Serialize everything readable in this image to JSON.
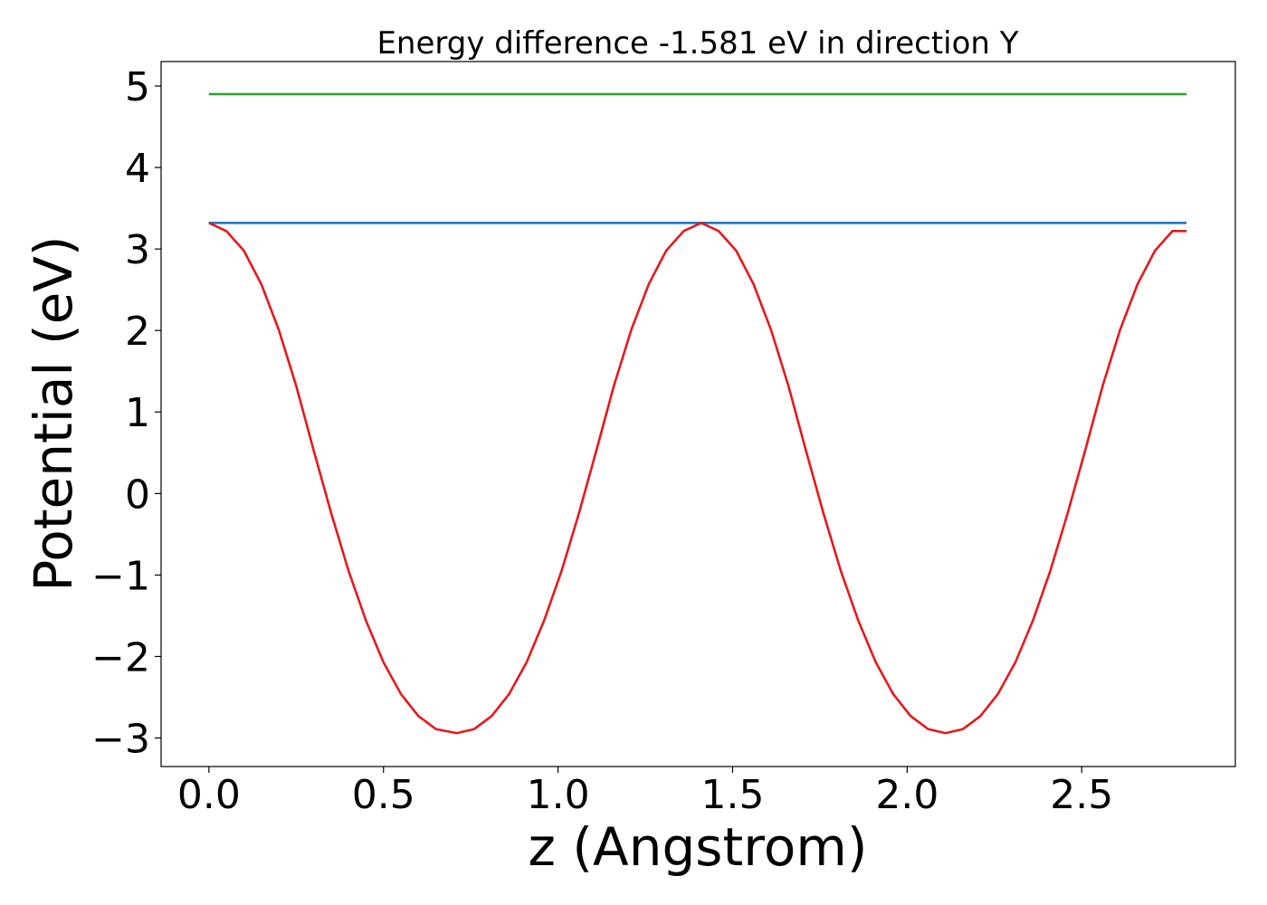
{
  "chart_data": {
    "type": "line",
    "title": "Energy difference -1.581 eV in direction Y",
    "xlabel": "z (Angstrom)",
    "ylabel": "Potential (eV)",
    "xlim": [
      -0.137,
      2.94
    ],
    "ylim": [
      -3.35,
      5.3
    ],
    "xticks": [
      0.0,
      0.5,
      1.0,
      1.5,
      2.0,
      2.5
    ],
    "xtick_labels": [
      "0.0",
      "0.5",
      "1.0",
      "1.5",
      "2.0",
      "2.5"
    ],
    "yticks": [
      -3,
      -2,
      -1,
      0,
      1,
      2,
      3,
      4,
      5
    ],
    "ytick_labels": [
      "−3",
      "−2",
      "−1",
      "0",
      "1",
      "2",
      "3",
      "4",
      "5"
    ],
    "grid": false,
    "legend": false,
    "series": [
      {
        "color": "#2ca02c",
        "x": [
          0.0,
          2.8
        ],
        "y": [
          4.9,
          4.9
        ]
      },
      {
        "color": "#1f77b4",
        "x": [
          0.0,
          2.8
        ],
        "y": [
          3.32,
          3.32
        ]
      },
      {
        "color": "#e31a1c",
        "x": [
          0.0,
          0.05,
          0.1,
          0.15,
          0.2,
          0.25,
          0.3,
          0.35,
          0.4,
          0.45,
          0.5,
          0.55,
          0.6,
          0.65,
          0.71,
          0.76,
          0.81,
          0.86,
          0.91,
          0.96,
          1.01,
          1.06,
          1.11,
          1.16,
          1.21,
          1.26,
          1.31,
          1.36,
          1.41,
          1.46,
          1.51,
          1.56,
          1.61,
          1.66,
          1.71,
          1.76,
          1.81,
          1.86,
          1.91,
          1.96,
          2.01,
          2.06,
          2.11,
          2.16,
          2.21,
          2.26,
          2.31,
          2.36,
          2.41,
          2.46,
          2.51,
          2.56,
          2.61,
          2.66,
          2.71,
          2.76,
          2.8
        ],
        "y": [
          3.32,
          3.22,
          2.98,
          2.57,
          2.01,
          1.32,
          0.53,
          -0.24,
          -0.95,
          -1.56,
          -2.07,
          -2.46,
          -2.73,
          -2.89,
          -2.94,
          -2.89,
          -2.73,
          -2.46,
          -2.07,
          -1.56,
          -0.95,
          -0.24,
          0.53,
          1.32,
          2.01,
          2.57,
          2.98,
          3.22,
          3.32,
          3.22,
          2.98,
          2.57,
          2.01,
          1.32,
          0.53,
          -0.24,
          -0.95,
          -1.56,
          -2.07,
          -2.46,
          -2.73,
          -2.89,
          -2.94,
          -2.89,
          -2.73,
          -2.46,
          -2.07,
          -1.56,
          -0.95,
          -0.24,
          0.53,
          1.32,
          2.01,
          2.57,
          2.98,
          3.22,
          3.22
        ]
      }
    ]
  }
}
